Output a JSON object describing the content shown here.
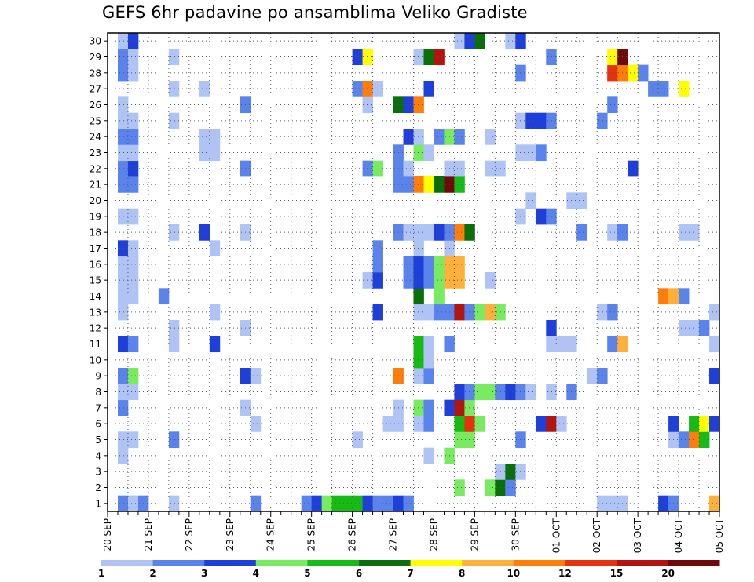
{
  "chart_data": {
    "type": "heatmap",
    "title": "GEFS 6hr padavine po ansamblima Veliko Gradiste",
    "xlabel": "",
    "ylabel": "",
    "members": [
      1,
      2,
      3,
      4,
      5,
      6,
      7,
      8,
      9,
      10,
      11,
      12,
      13,
      14,
      15,
      16,
      17,
      18,
      19,
      20,
      21,
      22,
      23,
      24,
      25,
      26,
      27,
      28,
      29,
      30
    ],
    "time_axis": {
      "start": "2015-09-20T00:00",
      "step_hours": 6,
      "n_steps": 60,
      "end": "2015-10-05T00:00"
    },
    "x_tick_labels": [
      "20 SEP",
      "21 SEP",
      "22 SEP",
      "23 SEP",
      "24 SEP",
      "25 SEP",
      "26 SEP",
      "27 SEP",
      "28 SEP",
      "29 SEP",
      "30 SEP",
      "01 OCT",
      "02 OCT",
      "03 OCT",
      "04 OCT",
      "05 OCT"
    ],
    "grid": true,
    "color_scale": {
      "levels": [
        "1",
        "2",
        "3",
        "4",
        "5",
        "6",
        "7",
        "8",
        "10",
        "12",
        "15",
        "20"
      ],
      "colors": [
        "#afc3f5",
        "#5a84ec",
        "#1e3fd9",
        "#78eb60",
        "#16bb16",
        "#0a6e0a",
        "#ffff00",
        "#ffb03a",
        "#ff7d0a",
        "#e6320f",
        "#b4140f",
        "#6e0a0a"
      ]
    },
    "cells": [
      [
        1,
        1,
        1
      ],
      [
        1,
        2,
        0
      ],
      [
        1,
        3,
        1
      ],
      [
        1,
        6,
        0
      ],
      [
        1,
        14,
        1
      ],
      [
        1,
        19,
        1
      ],
      [
        1,
        20,
        2
      ],
      [
        1,
        21,
        3
      ],
      [
        1,
        22,
        4
      ],
      [
        1,
        23,
        4
      ],
      [
        1,
        24,
        4
      ],
      [
        1,
        25,
        2
      ],
      [
        1,
        26,
        1
      ],
      [
        1,
        27,
        1
      ],
      [
        1,
        28,
        2
      ],
      [
        1,
        29,
        1
      ],
      [
        1,
        48,
        0
      ],
      [
        1,
        49,
        0
      ],
      [
        1,
        50,
        0
      ],
      [
        1,
        54,
        2
      ],
      [
        1,
        55,
        1
      ],
      [
        1,
        59,
        7
      ],
      [
        2,
        34,
        3
      ],
      [
        2,
        37,
        3
      ],
      [
        2,
        38,
        5
      ],
      [
        2,
        39,
        1
      ],
      [
        3,
        38,
        0
      ],
      [
        3,
        39,
        5
      ],
      [
        3,
        40,
        0
      ],
      [
        4,
        1,
        0
      ],
      [
        4,
        31,
        0
      ],
      [
        4,
        33,
        3
      ],
      [
        5,
        1,
        0
      ],
      [
        5,
        2,
        0
      ],
      [
        5,
        6,
        1
      ],
      [
        5,
        24,
        0
      ],
      [
        5,
        34,
        3
      ],
      [
        5,
        35,
        3
      ],
      [
        5,
        40,
        1
      ],
      [
        5,
        55,
        0
      ],
      [
        5,
        56,
        1
      ],
      [
        5,
        57,
        8
      ],
      [
        5,
        58,
        4
      ],
      [
        6,
        14,
        0
      ],
      [
        6,
        27,
        0
      ],
      [
        6,
        28,
        0
      ],
      [
        6,
        30,
        0
      ],
      [
        6,
        31,
        1
      ],
      [
        6,
        34,
        4
      ],
      [
        6,
        35,
        9
      ],
      [
        6,
        36,
        3
      ],
      [
        6,
        42,
        2
      ],
      [
        6,
        43,
        10
      ],
      [
        6,
        44,
        0
      ],
      [
        6,
        55,
        2
      ],
      [
        6,
        57,
        4
      ],
      [
        6,
        58,
        6
      ],
      [
        6,
        59,
        2
      ],
      [
        7,
        1,
        1
      ],
      [
        7,
        13,
        0
      ],
      [
        7,
        28,
        0
      ],
      [
        7,
        30,
        3
      ],
      [
        7,
        31,
        1
      ],
      [
        7,
        33,
        2
      ],
      [
        7,
        34,
        10
      ],
      [
        7,
        35,
        3
      ],
      [
        8,
        1,
        0
      ],
      [
        8,
        2,
        0
      ],
      [
        8,
        34,
        2
      ],
      [
        8,
        35,
        1
      ],
      [
        8,
        36,
        3
      ],
      [
        8,
        37,
        3
      ],
      [
        8,
        38,
        1
      ],
      [
        8,
        39,
        2
      ],
      [
        8,
        40,
        1
      ],
      [
        8,
        41,
        0
      ],
      [
        8,
        43,
        0
      ],
      [
        8,
        45,
        1
      ],
      [
        9,
        1,
        1
      ],
      [
        9,
        2,
        3
      ],
      [
        9,
        13,
        2
      ],
      [
        9,
        14,
        0
      ],
      [
        9,
        28,
        8
      ],
      [
        9,
        30,
        0
      ],
      [
        9,
        31,
        1
      ],
      [
        9,
        47,
        0
      ],
      [
        9,
        48,
        1
      ],
      [
        9,
        59,
        2
      ],
      [
        10,
        30,
        4
      ],
      [
        10,
        31,
        0
      ],
      [
        11,
        1,
        2
      ],
      [
        11,
        2,
        1
      ],
      [
        11,
        6,
        0
      ],
      [
        11,
        10,
        2
      ],
      [
        11,
        30,
        4
      ],
      [
        11,
        31,
        0
      ],
      [
        11,
        33,
        1
      ],
      [
        11,
        43,
        0
      ],
      [
        11,
        44,
        0
      ],
      [
        11,
        45,
        0
      ],
      [
        11,
        49,
        1
      ],
      [
        11,
        50,
        7
      ],
      [
        11,
        59,
        0
      ],
      [
        12,
        6,
        0
      ],
      [
        12,
        13,
        0
      ],
      [
        12,
        43,
        2
      ],
      [
        12,
        56,
        0
      ],
      [
        12,
        57,
        0
      ],
      [
        12,
        58,
        1
      ],
      [
        13,
        1,
        0
      ],
      [
        13,
        10,
        0
      ],
      [
        13,
        26,
        2
      ],
      [
        13,
        30,
        0
      ],
      [
        13,
        31,
        0
      ],
      [
        13,
        32,
        1
      ],
      [
        13,
        33,
        1
      ],
      [
        13,
        34,
        10
      ],
      [
        13,
        35,
        1
      ],
      [
        13,
        36,
        3
      ],
      [
        13,
        37,
        7
      ],
      [
        13,
        38,
        3
      ],
      [
        13,
        48,
        0
      ],
      [
        13,
        49,
        1
      ],
      [
        13,
        59,
        0
      ],
      [
        14,
        1,
        0
      ],
      [
        14,
        2,
        0
      ],
      [
        14,
        5,
        1
      ],
      [
        14,
        30,
        5
      ],
      [
        14,
        32,
        3
      ],
      [
        14,
        54,
        8
      ],
      [
        14,
        55,
        7
      ],
      [
        14,
        56,
        1
      ],
      [
        15,
        1,
        0
      ],
      [
        15,
        2,
        0
      ],
      [
        15,
        25,
        0
      ],
      [
        15,
        26,
        2
      ],
      [
        15,
        29,
        1
      ],
      [
        15,
        30,
        2
      ],
      [
        15,
        31,
        1
      ],
      [
        15,
        32,
        3
      ],
      [
        15,
        33,
        7
      ],
      [
        15,
        34,
        7
      ],
      [
        15,
        37,
        0
      ],
      [
        16,
        1,
        0
      ],
      [
        16,
        2,
        0
      ],
      [
        16,
        26,
        1
      ],
      [
        16,
        29,
        1
      ],
      [
        16,
        30,
        2
      ],
      [
        16,
        31,
        1
      ],
      [
        16,
        32,
        3
      ],
      [
        16,
        33,
        7
      ],
      [
        16,
        34,
        7
      ],
      [
        17,
        1,
        2
      ],
      [
        17,
        2,
        0
      ],
      [
        17,
        10,
        0
      ],
      [
        17,
        26,
        1
      ],
      [
        17,
        30,
        0
      ],
      [
        17,
        33,
        0
      ],
      [
        18,
        6,
        0
      ],
      [
        18,
        9,
        2
      ],
      [
        18,
        13,
        0
      ],
      [
        18,
        28,
        1
      ],
      [
        18,
        29,
        0
      ],
      [
        18,
        30,
        0
      ],
      [
        18,
        31,
        0
      ],
      [
        18,
        32,
        2
      ],
      [
        18,
        33,
        1
      ],
      [
        18,
        34,
        8
      ],
      [
        18,
        35,
        5
      ],
      [
        18,
        46,
        1
      ],
      [
        18,
        49,
        0
      ],
      [
        18,
        50,
        1
      ],
      [
        18,
        56,
        0
      ],
      [
        18,
        57,
        0
      ],
      [
        19,
        1,
        0
      ],
      [
        19,
        2,
        0
      ],
      [
        19,
        40,
        0
      ],
      [
        19,
        42,
        2
      ],
      [
        19,
        43,
        1
      ],
      [
        20,
        41,
        0
      ],
      [
        20,
        45,
        0
      ],
      [
        20,
        46,
        0
      ],
      [
        21,
        1,
        1
      ],
      [
        21,
        2,
        1
      ],
      [
        21,
        28,
        1
      ],
      [
        21,
        29,
        1
      ],
      [
        21,
        30,
        8
      ],
      [
        21,
        31,
        6
      ],
      [
        21,
        32,
        5
      ],
      [
        21,
        33,
        11
      ],
      [
        21,
        34,
        4
      ],
      [
        22,
        1,
        1
      ],
      [
        22,
        2,
        2
      ],
      [
        22,
        13,
        1
      ],
      [
        22,
        25,
        1
      ],
      [
        22,
        26,
        3
      ],
      [
        22,
        28,
        1
      ],
      [
        22,
        29,
        0
      ],
      [
        22,
        33,
        0
      ],
      [
        22,
        34,
        0
      ],
      [
        22,
        37,
        0
      ],
      [
        22,
        38,
        0
      ],
      [
        22,
        51,
        2
      ],
      [
        23,
        1,
        0
      ],
      [
        23,
        2,
        0
      ],
      [
        23,
        9,
        0
      ],
      [
        23,
        10,
        0
      ],
      [
        23,
        28,
        1
      ],
      [
        23,
        30,
        3
      ],
      [
        23,
        31,
        0
      ],
      [
        23,
        40,
        0
      ],
      [
        23,
        41,
        0
      ],
      [
        23,
        42,
        1
      ],
      [
        24,
        1,
        1
      ],
      [
        24,
        2,
        1
      ],
      [
        24,
        9,
        0
      ],
      [
        24,
        10,
        0
      ],
      [
        24,
        29,
        2
      ],
      [
        24,
        30,
        0
      ],
      [
        24,
        32,
        1
      ],
      [
        24,
        33,
        3
      ],
      [
        24,
        34,
        1
      ],
      [
        24,
        37,
        0
      ],
      [
        25,
        1,
        0
      ],
      [
        25,
        2,
        0
      ],
      [
        25,
        6,
        0
      ],
      [
        25,
        40,
        0
      ],
      [
        25,
        41,
        2
      ],
      [
        25,
        42,
        2
      ],
      [
        25,
        43,
        1
      ],
      [
        25,
        48,
        1
      ],
      [
        26,
        1,
        0
      ],
      [
        26,
        13,
        1
      ],
      [
        26,
        25,
        0
      ],
      [
        26,
        28,
        5
      ],
      [
        26,
        29,
        2
      ],
      [
        26,
        30,
        8
      ],
      [
        26,
        49,
        1
      ],
      [
        27,
        6,
        0
      ],
      [
        27,
        9,
        0
      ],
      [
        27,
        24,
        1
      ],
      [
        27,
        25,
        8
      ],
      [
        27,
        26,
        0
      ],
      [
        27,
        31,
        2
      ],
      [
        27,
        53,
        1
      ],
      [
        27,
        54,
        1
      ],
      [
        27,
        56,
        6
      ],
      [
        28,
        1,
        1
      ],
      [
        28,
        2,
        0
      ],
      [
        28,
        40,
        1
      ],
      [
        28,
        49,
        9
      ],
      [
        28,
        50,
        8
      ],
      [
        28,
        51,
        6
      ],
      [
        28,
        52,
        1
      ],
      [
        29,
        1,
        1
      ],
      [
        29,
        2,
        0
      ],
      [
        29,
        6,
        0
      ],
      [
        29,
        24,
        2
      ],
      [
        29,
        25,
        6
      ],
      [
        29,
        30,
        0
      ],
      [
        29,
        31,
        5
      ],
      [
        29,
        32,
        10
      ],
      [
        29,
        43,
        1
      ],
      [
        29,
        49,
        6
      ],
      [
        29,
        50,
        11
      ],
      [
        30,
        1,
        0
      ],
      [
        30,
        2,
        2
      ],
      [
        30,
        34,
        0
      ],
      [
        30,
        35,
        2
      ],
      [
        30,
        36,
        5
      ],
      [
        30,
        39,
        0
      ],
      [
        30,
        40,
        2
      ]
    ]
  }
}
